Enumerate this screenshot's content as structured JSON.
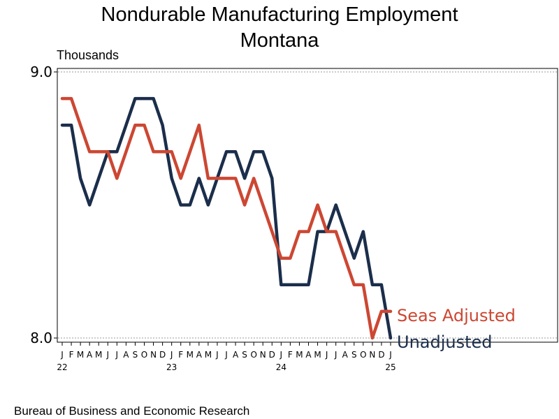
{
  "chart_data": {
    "type": "line",
    "title": "Nondurable Manufacturing Employment",
    "subtitle": "Montana",
    "unit_label": "Thousands",
    "ylim": [
      8.0,
      9.0
    ],
    "yticks": [
      "9.0",
      "8.0"
    ],
    "month_labels": [
      "J",
      "F",
      "M",
      "A",
      "M",
      "J",
      "J",
      "A",
      "S",
      "O",
      "N",
      "D",
      "J",
      "F",
      "M",
      "A",
      "M",
      "J",
      "J",
      "A",
      "S",
      "O",
      "N",
      "D",
      "J",
      "F",
      "M",
      "A",
      "M",
      "J",
      "J",
      "A",
      "S",
      "O",
      "N",
      "D",
      "J"
    ],
    "year_labels": [
      {
        "label": "22",
        "index": 0
      },
      {
        "label": "23",
        "index": 12
      },
      {
        "label": "24",
        "index": 24
      },
      {
        "label": "25",
        "index": 36
      }
    ],
    "grid": false,
    "series": [
      {
        "name": "Seas Adjusted",
        "color": "#cc4733",
        "values": [
          8.9,
          8.9,
          8.8,
          8.7,
          8.7,
          8.7,
          8.6,
          8.7,
          8.8,
          8.8,
          8.7,
          8.7,
          8.7,
          8.6,
          8.7,
          8.8,
          8.6,
          8.6,
          8.6,
          8.6,
          8.5,
          8.6,
          8.5,
          8.4,
          8.3,
          8.3,
          8.4,
          8.4,
          8.5,
          8.4,
          8.4,
          8.3,
          8.2,
          8.2,
          8.0,
          8.1,
          8.1
        ]
      },
      {
        "name": "Unadjusted",
        "color": "#1b2e4b",
        "values": [
          8.8,
          8.8,
          8.6,
          8.5,
          8.6,
          8.7,
          8.7,
          8.8,
          8.9,
          8.9,
          8.9,
          8.8,
          8.6,
          8.5,
          8.5,
          8.6,
          8.5,
          8.6,
          8.7,
          8.7,
          8.6,
          8.7,
          8.7,
          8.6,
          8.2,
          8.2,
          8.2,
          8.2,
          8.4,
          8.4,
          8.5,
          8.4,
          8.3,
          8.4,
          8.2,
          8.2,
          8.0
        ]
      }
    ]
  },
  "footer": "Bureau of Business and Economic Research"
}
